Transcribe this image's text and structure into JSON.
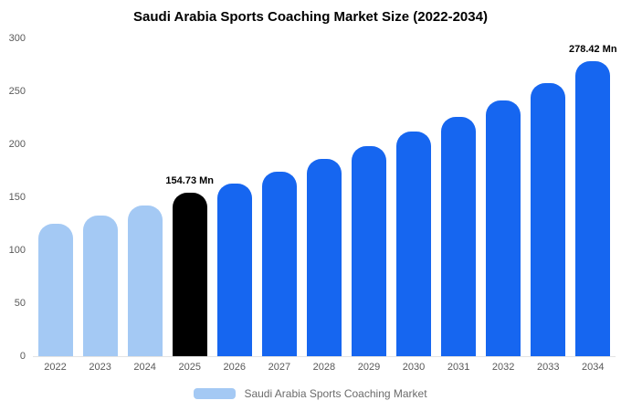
{
  "title": "Saudi Arabia Sports Coaching Market Size (2022-2034)",
  "chart_data": {
    "type": "bar",
    "categories": [
      "2022",
      "2023",
      "2024",
      "2025",
      "2026",
      "2027",
      "2028",
      "2029",
      "2030",
      "2031",
      "2032",
      "2033",
      "2034"
    ],
    "values": [
      125,
      133,
      142,
      154.73,
      163,
      174,
      186,
      198,
      212,
      226,
      241,
      258,
      278.42
    ],
    "bar_roles": [
      "past",
      "past",
      "past",
      "highlight",
      "forecast",
      "forecast",
      "forecast",
      "forecast",
      "forecast",
      "forecast",
      "forecast",
      "forecast",
      "forecast"
    ],
    "colors": {
      "past": "#a4c9f4",
      "highlight": "#000000",
      "forecast": "#1666f0"
    },
    "annotations": [
      {
        "index": 3,
        "text": "154.73 Mn"
      },
      {
        "index": 12,
        "text": "278.42 Mn"
      }
    ],
    "title": "Saudi Arabia Sports Coaching Market Size (2022-2034)",
    "xlabel": "",
    "ylabel": "",
    "ylim": [
      0,
      300
    ],
    "yticks": [
      0,
      50,
      100,
      150,
      200,
      250,
      300
    ],
    "grid": false,
    "legend_position": "bottom"
  },
  "legend": {
    "label": "Saudi Arabia Sports Coaching Market",
    "swatch_color": "#a4c9f4"
  }
}
